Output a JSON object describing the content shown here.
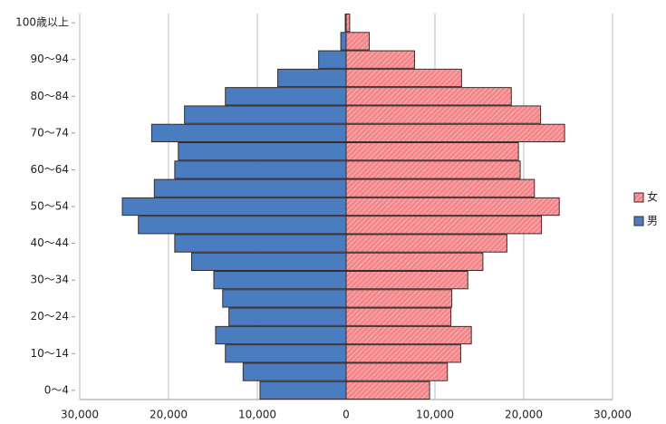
{
  "chart_data": {
    "type": "pyramid",
    "categories": [
      "0～4",
      null,
      "10～14",
      null,
      "20～24",
      null,
      "30～34",
      null,
      "40～44",
      null,
      "50～54",
      null,
      "60～64",
      null,
      "70～74",
      null,
      "80～84",
      null,
      "90～94",
      null,
      "100歳以上"
    ],
    "series": [
      {
        "name": "女",
        "color": "#f4868a",
        "values": [
          9400,
          11400,
          12900,
          14100,
          11800,
          11900,
          13700,
          15400,
          18100,
          22000,
          24000,
          21200,
          19600,
          19400,
          24600,
          21900,
          18600,
          13000,
          7700,
          2600,
          400
        ]
      },
      {
        "name": "男",
        "color": "#4a7cc0",
        "values": [
          -9700,
          -11600,
          -13600,
          -14700,
          -13200,
          -13900,
          -14900,
          -17400,
          -19300,
          -23400,
          -25200,
          -21600,
          -19300,
          -18900,
          -21900,
          -18200,
          -13600,
          -7700,
          -3100,
          -600,
          -100
        ]
      }
    ],
    "xlim": [
      -30000,
      30000
    ],
    "xticks": [
      {
        "value": -30000,
        "label": "30,000"
      },
      {
        "value": -20000,
        "label": "20,000"
      },
      {
        "value": -10000,
        "label": "10,000"
      },
      0,
      {
        "value": 10000,
        "label": "10,000"
      },
      {
        "value": 20000,
        "label": "20,000"
      },
      {
        "value": 30000,
        "label": "30,000"
      }
    ],
    "grid": true,
    "legend": "right"
  }
}
